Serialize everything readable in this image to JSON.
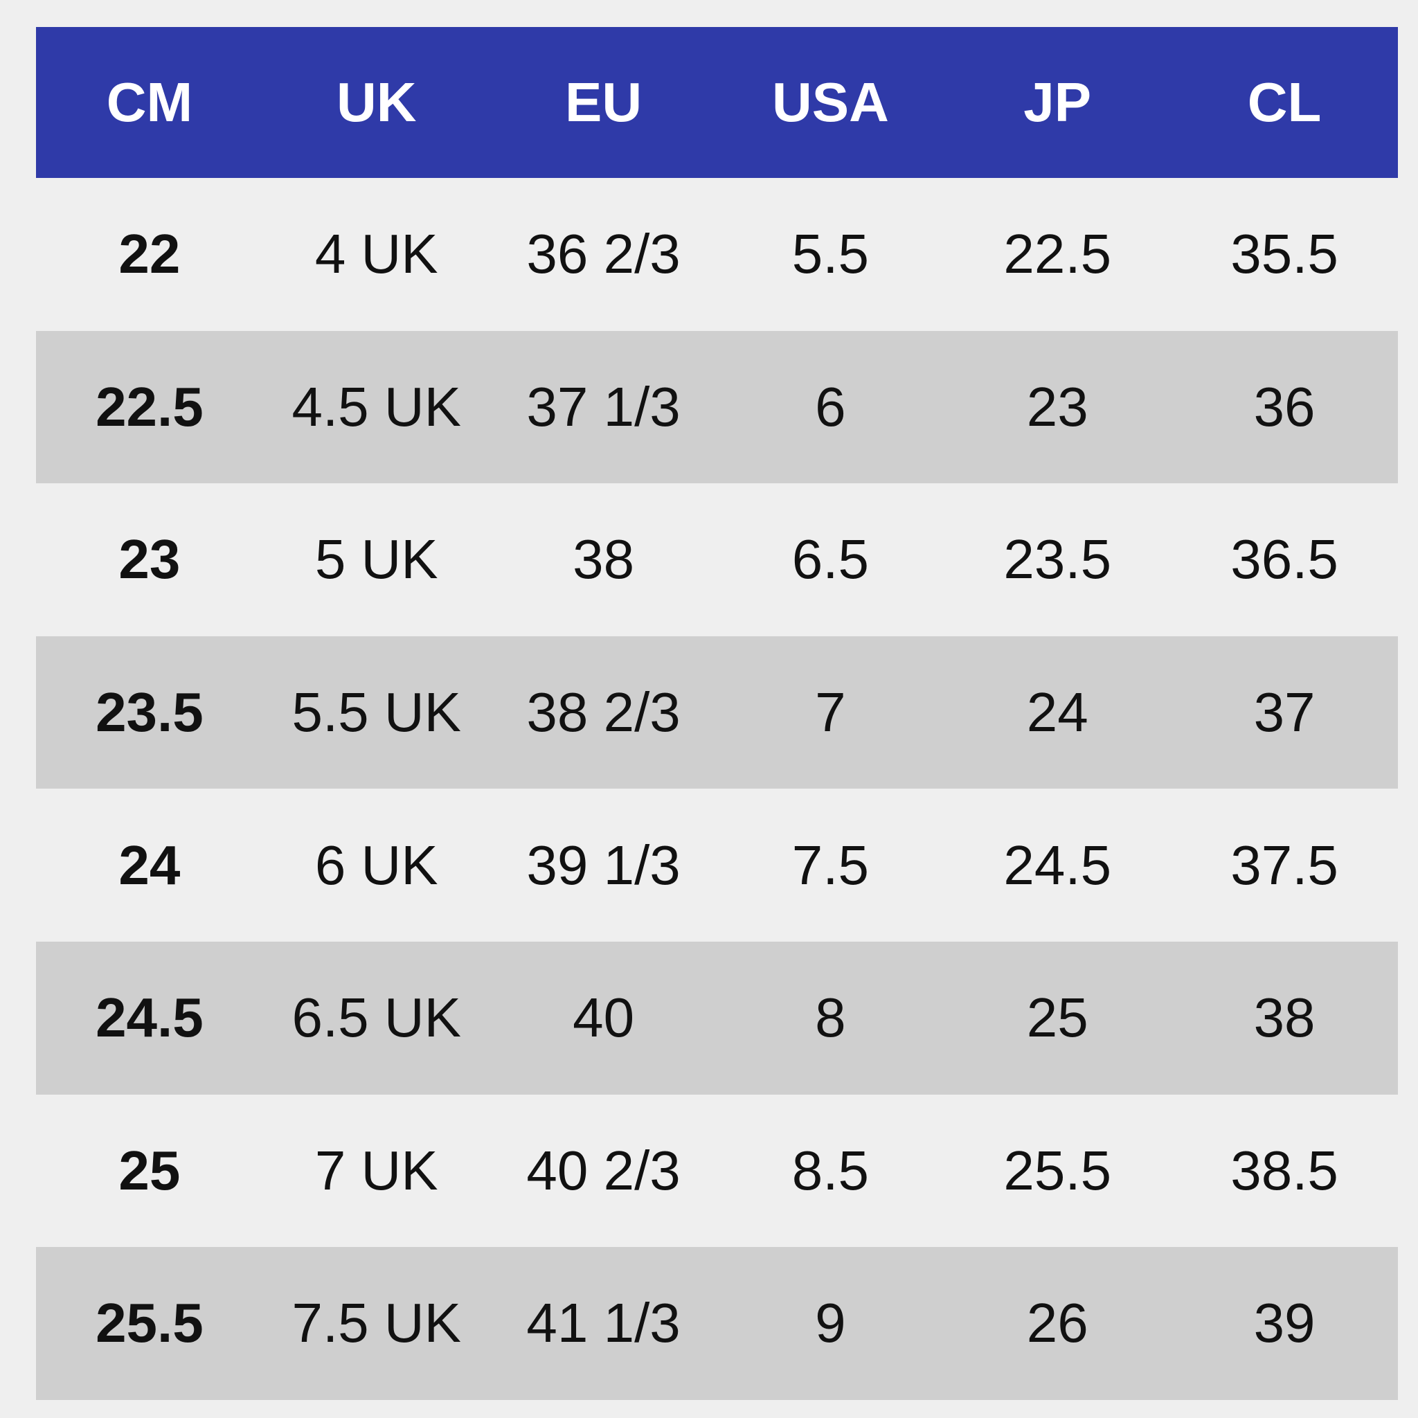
{
  "table": {
    "header": [
      "CM",
      "UK",
      "EU",
      "USA",
      "JP",
      "CL"
    ],
    "rows": [
      [
        "22",
        "4 UK",
        "36 2/3",
        "5.5",
        "22.5",
        "35.5"
      ],
      [
        "22.5",
        "4.5 UK",
        "37 1/3",
        "6",
        "23",
        "36"
      ],
      [
        "23",
        "5 UK",
        "38",
        "6.5",
        "23.5",
        "36.5"
      ],
      [
        "23.5",
        "5.5 UK",
        "38 2/3",
        "7",
        "24",
        "37"
      ],
      [
        "24",
        "6 UK",
        "39 1/3",
        "7.5",
        "24.5",
        "37.5"
      ],
      [
        "24.5",
        "6.5 UK",
        "40",
        "8",
        "25",
        "38"
      ],
      [
        "25",
        "7 UK",
        "40 2/3",
        "8.5",
        "25.5",
        "38.5"
      ],
      [
        "25.5",
        "7.5 UK",
        "41 1/3",
        "9",
        "26",
        "39"
      ]
    ]
  }
}
